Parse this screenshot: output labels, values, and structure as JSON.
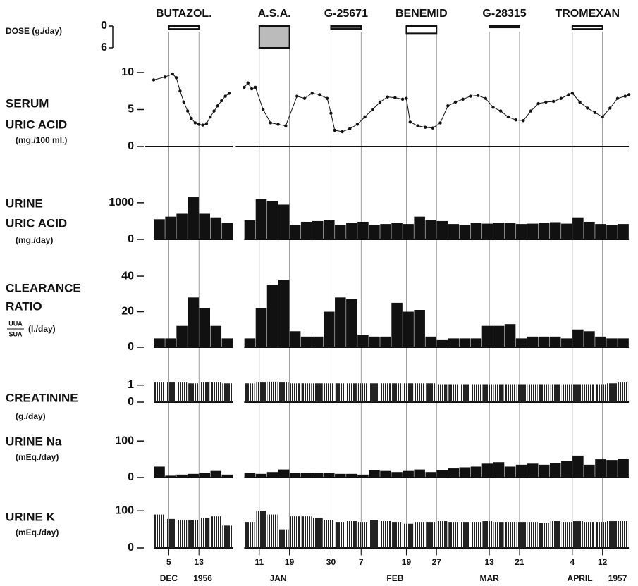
{
  "x_axis": {
    "xlim": [
      1,
      140
    ],
    "xbreak": [
      22,
      35
    ],
    "xticks": [
      5,
      13,
      {
        "value": 42,
        "label": "11"
      },
      {
        "value": 50,
        "label": "19"
      },
      {
        "value": 61,
        "label": "30"
      },
      {
        "value": 69,
        "label": "7"
      },
      {
        "value": 81,
        "label": "19"
      },
      {
        "value": 89,
        "label": "27"
      },
      {
        "value": 103,
        "label": "13"
      },
      {
        "value": 111,
        "label": "21"
      },
      {
        "value": 125,
        "label": "4"
      },
      {
        "value": 133,
        "label": "12"
      }
    ],
    "month_labels": [
      {
        "value": 5,
        "label": "DEC"
      },
      {
        "value": 14,
        "label": "1956"
      },
      {
        "value": 47,
        "label": "JAN"
      },
      {
        "value": 78,
        "label": "FEB"
      },
      {
        "value": 103,
        "label": "MAR"
      },
      {
        "value": 127,
        "label": "APRIL"
      },
      {
        "value": 137,
        "label": "1957"
      }
    ]
  },
  "chart_data": [
    {
      "type": "dose",
      "label": [
        "DOSE (g./day)"
      ],
      "ylim": [
        0,
        6
      ],
      "yticks": [
        0,
        6
      ],
      "drugs": [
        {
          "name": "BUTAZOL.",
          "start": 5,
          "end": 13,
          "dose": 0.8,
          "fill": "#ffffff"
        },
        {
          "name": "A.S.A.",
          "start": 42,
          "end": 50,
          "dose": 6,
          "fill": "#bbbbbb"
        },
        {
          "name": "G-25671",
          "start": 61,
          "end": 69,
          "dose": 0.8,
          "fill": "#555555"
        },
        {
          "name": "BENEMID",
          "start": 81,
          "end": 89,
          "dose": 2,
          "fill": "#ffffff"
        },
        {
          "name": "G-28315",
          "start": 103,
          "end": 111,
          "dose": 0.4,
          "fill": "#ffffff"
        },
        {
          "name": "TROMEXAN",
          "start": 125,
          "end": 133,
          "dose": 0.8,
          "fill": "#ffffff"
        }
      ]
    },
    {
      "type": "line",
      "label": [
        "SERUM",
        "URIC ACID",
        "(mg./100 ml.)"
      ],
      "ylim": [
        0,
        10
      ],
      "yticks": [
        0,
        5,
        10
      ],
      "color": "#111111",
      "x": [
        1,
        4,
        6,
        7,
        8,
        9,
        10,
        11,
        12,
        13,
        14,
        15,
        16,
        17,
        18,
        19,
        20,
        21,
        30,
        38,
        39,
        40,
        41,
        43,
        45,
        47,
        49,
        52,
        54,
        56,
        58,
        60,
        61,
        62,
        64,
        66,
        68,
        70,
        72,
        74,
        76,
        78,
        80,
        81,
        82,
        84,
        86,
        88,
        90,
        92,
        94,
        96,
        98,
        100,
        102,
        104,
        106,
        108,
        110,
        112,
        114,
        116,
        118,
        120,
        122,
        124,
        125,
        127,
        129,
        131,
        133,
        135,
        137,
        139,
        140
      ],
      "values": [
        9,
        9.4,
        9.8,
        9.3,
        7.5,
        6,
        4.8,
        3.8,
        3.2,
        3,
        2.9,
        3.1,
        4,
        4.8,
        5.5,
        6.2,
        6.8,
        7.2,
        null,
        8,
        8.6,
        7.8,
        8,
        5,
        3.2,
        3,
        2.8,
        6.8,
        6.5,
        7.2,
        7,
        6.5,
        4.5,
        2.2,
        2,
        2.4,
        3,
        4,
        5,
        6,
        6.7,
        6.6,
        6.4,
        6.5,
        3.3,
        2.8,
        2.6,
        2.5,
        3.2,
        5.5,
        6,
        6.4,
        6.8,
        6.9,
        6.5,
        5.3,
        4.8,
        4,
        3.6,
        3.5,
        4.8,
        5.8,
        6,
        6.1,
        6.5,
        7,
        7.2,
        6,
        5.2,
        4.6,
        4,
        5.2,
        6.5,
        6.8,
        7
      ]
    },
    {
      "type": "bar",
      "label": [
        "URINE",
        "URIC ACID",
        "(mg./day)"
      ],
      "ylim": [
        0,
        1400
      ],
      "yticks": [
        0,
        1000
      ],
      "color": "#111111",
      "x": [
        1,
        4,
        7,
        10,
        13,
        16,
        19,
        38,
        41,
        44,
        47,
        50,
        53,
        56,
        59,
        62,
        65,
        68,
        71,
        74,
        77,
        80,
        83,
        86,
        89,
        92,
        95,
        98,
        101,
        104,
        107,
        110,
        113,
        116,
        119,
        122,
        125,
        128,
        131,
        134,
        137
      ],
      "values": [
        550,
        620,
        700,
        1150,
        700,
        600,
        450,
        520,
        1100,
        1050,
        950,
        400,
        480,
        500,
        520,
        400,
        460,
        480,
        400,
        420,
        450,
        420,
        620,
        520,
        500,
        420,
        400,
        450,
        430,
        460,
        450,
        420,
        430,
        460,
        470,
        430,
        600,
        480,
        420,
        400,
        420
      ]
    },
    {
      "type": "bar",
      "label": [
        "CLEARANCE",
        "RATIO"
      ],
      "formula": {
        "numerator": "UUA",
        "denominator": "SUA",
        "unit": "(l./day)"
      },
      "ylim": [
        0,
        42
      ],
      "yticks": [
        0,
        20,
        40
      ],
      "color": "#111111",
      "x": [
        1,
        4,
        7,
        10,
        13,
        16,
        19,
        38,
        41,
        44,
        47,
        50,
        53,
        56,
        59,
        62,
        65,
        68,
        71,
        74,
        77,
        80,
        83,
        86,
        89,
        92,
        95,
        98,
        101,
        104,
        107,
        110,
        113,
        116,
        119,
        122,
        125,
        128,
        131,
        134,
        137
      ],
      "values": [
        5,
        5,
        12,
        28,
        22,
        12,
        5,
        5,
        22,
        35,
        38,
        9,
        6,
        6,
        20,
        28,
        27,
        7,
        6,
        6,
        25,
        20,
        21,
        6,
        4,
        5,
        5,
        5,
        12,
        12,
        13,
        5,
        6,
        6,
        6,
        5,
        10,
        9,
        6,
        5,
        5
      ]
    },
    {
      "type": "bar",
      "label": [
        "CREATININE",
        "(g./day)"
      ],
      "ylim": [
        0,
        1.4
      ],
      "yticks": [
        0,
        1
      ],
      "color": "#222222",
      "striped": true,
      "x": [
        1,
        4,
        7,
        10,
        13,
        16,
        19,
        38,
        41,
        44,
        47,
        50,
        53,
        56,
        59,
        62,
        65,
        68,
        71,
        74,
        77,
        80,
        83,
        86,
        89,
        92,
        95,
        98,
        101,
        104,
        107,
        110,
        113,
        116,
        119,
        122,
        125,
        128,
        131,
        134,
        137
      ],
      "values": [
        1.15,
        1.15,
        1.15,
        1.1,
        1.15,
        1.15,
        1.1,
        1.1,
        1.15,
        1.2,
        1.15,
        1.1,
        1.1,
        1.1,
        1.1,
        1.1,
        1.1,
        1.1,
        1.1,
        1.1,
        1.1,
        1.1,
        1.1,
        1.1,
        1.05,
        1.05,
        1.05,
        1.05,
        1.05,
        1.05,
        1.05,
        1.05,
        1.05,
        1.05,
        1.05,
        1.05,
        1.05,
        1.05,
        1.05,
        1.1,
        1.15
      ]
    },
    {
      "type": "bar",
      "label": [
        "URINE Na",
        "(mEq./day)"
      ],
      "ylim": [
        0,
        110
      ],
      "yticks": [
        0,
        100
      ],
      "color": "#111111",
      "x": [
        1,
        4,
        7,
        10,
        13,
        16,
        19,
        38,
        41,
        44,
        47,
        50,
        53,
        56,
        59,
        62,
        65,
        68,
        71,
        74,
        77,
        80,
        83,
        86,
        89,
        92,
        95,
        98,
        101,
        104,
        107,
        110,
        113,
        116,
        119,
        122,
        125,
        128,
        131,
        134,
        137
      ],
      "values": [
        30,
        5,
        8,
        10,
        12,
        18,
        8,
        12,
        10,
        15,
        22,
        12,
        12,
        12,
        12,
        10,
        10,
        8,
        20,
        18,
        15,
        18,
        22,
        15,
        20,
        25,
        28,
        30,
        38,
        42,
        30,
        35,
        38,
        35,
        40,
        45,
        60,
        35,
        50,
        48,
        52
      ]
    },
    {
      "type": "bar",
      "label": [
        "URINE K",
        "(mEq./day)"
      ],
      "ylim": [
        0,
        110
      ],
      "yticks": [
        0,
        100
      ],
      "color": "#222222",
      "striped": true,
      "x": [
        1,
        4,
        7,
        10,
        13,
        16,
        19,
        38,
        41,
        44,
        47,
        50,
        53,
        56,
        59,
        62,
        65,
        68,
        71,
        74,
        77,
        80,
        83,
        86,
        89,
        92,
        95,
        98,
        101,
        104,
        107,
        110,
        113,
        116,
        119,
        122,
        125,
        128,
        131,
        134,
        137
      ],
      "values": [
        90,
        78,
        75,
        75,
        80,
        85,
        60,
        70,
        100,
        90,
        50,
        85,
        85,
        80,
        75,
        70,
        72,
        70,
        75,
        72,
        70,
        65,
        70,
        70,
        72,
        70,
        70,
        70,
        72,
        70,
        70,
        70,
        70,
        68,
        72,
        70,
        72,
        70,
        70,
        72,
        72
      ]
    }
  ]
}
